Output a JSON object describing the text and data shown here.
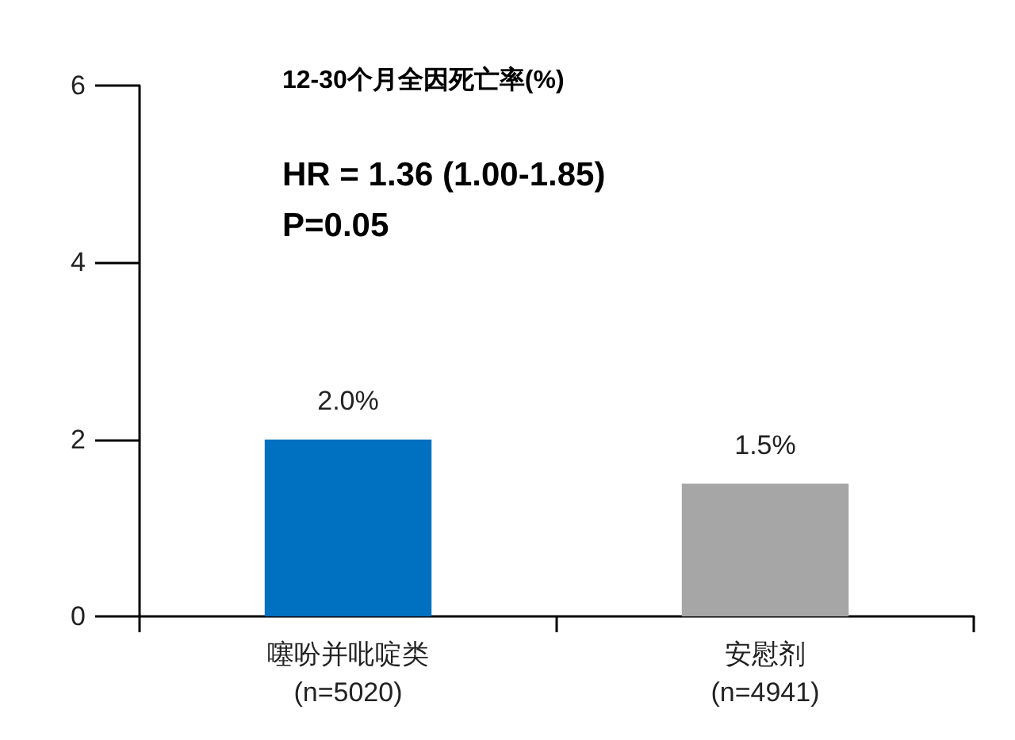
{
  "chart_data": {
    "type": "bar",
    "title": "12-30个月全因死亡率(%)",
    "annotations": [
      "HR = 1.36 (1.00-1.85)",
      "P=0.05"
    ],
    "categories": [
      "噻吩并吡啶类\n(n=5020)",
      "安慰剂\n(n=4941)"
    ],
    "values": [
      2.0,
      1.5
    ],
    "colors": [
      "#0070c0",
      "#a6a6a6"
    ],
    "value_labels": [
      "2.0%",
      "1.5%"
    ],
    "ylim": [
      0,
      6
    ],
    "yticks": [
      0,
      2,
      4,
      6
    ],
    "grid": false
  }
}
